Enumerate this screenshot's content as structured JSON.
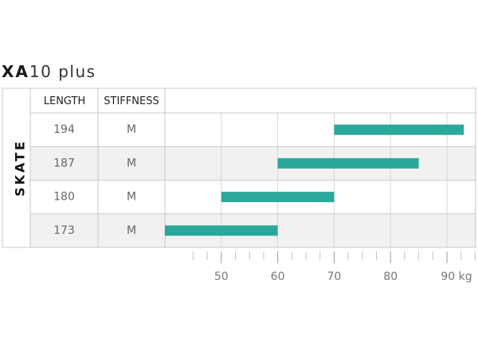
{
  "title": {
    "model_bold": "XA",
    "model_rest": "10  plus"
  },
  "table": {
    "section_label": "SKATE",
    "header_length": "LENGTH",
    "header_stiffness": "STIFFNESS"
  },
  "chart_data": {
    "type": "bar",
    "orientation": "horizontal-range",
    "categories": [
      "194",
      "187",
      "180",
      "173"
    ],
    "stiffness": [
      "M",
      "M",
      "M",
      "M"
    ],
    "ranges": [
      [
        70,
        93
      ],
      [
        60,
        85
      ],
      [
        50,
        70
      ],
      [
        40,
        60
      ]
    ],
    "x_ticks": [
      50,
      60,
      70,
      80,
      90
    ],
    "x_unit": "kg",
    "xlim": [
      40,
      95
    ],
    "bar_color": "#2aa89a",
    "alt_row_color": "#f2f1ef"
  }
}
